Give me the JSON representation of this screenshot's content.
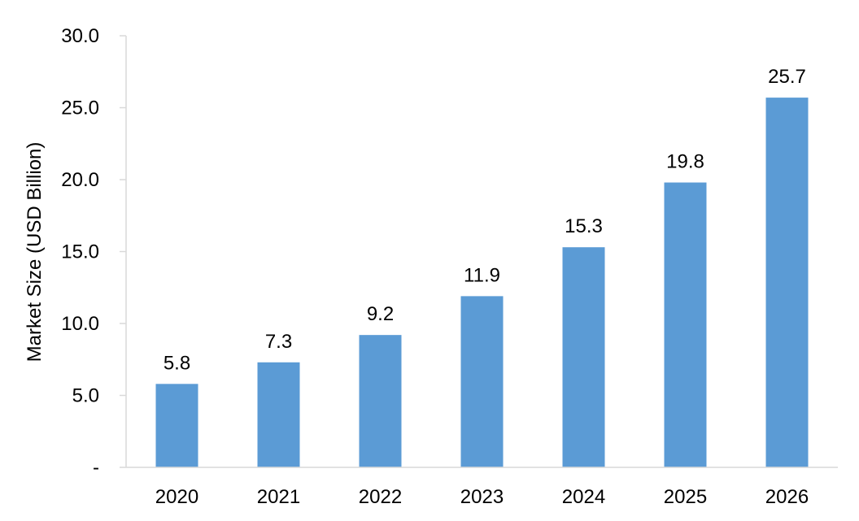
{
  "chart_data": {
    "type": "bar",
    "title": "",
    "xlabel": "",
    "ylabel": "Market Size (USD Billion)",
    "categories": [
      "2020",
      "2021",
      "2022",
      "2023",
      "2024",
      "2025",
      "2026"
    ],
    "values": [
      5.8,
      7.3,
      9.2,
      11.9,
      15.3,
      19.8,
      25.7
    ],
    "data_labels": [
      "5.8",
      "7.3",
      "9.2",
      "11.9",
      "15.3",
      "19.8",
      "25.7"
    ],
    "ylim": [
      0,
      30
    ],
    "y_ticks": [
      0,
      5,
      10,
      15,
      20,
      25,
      30
    ],
    "y_tick_labels": [
      "-",
      "5.0",
      "10.0",
      "15.0",
      "20.0",
      "25.0",
      "30.0"
    ],
    "grid": false,
    "legend": "none",
    "bar_color": "#5B9BD5",
    "axis_color": "#D9D9D9"
  }
}
